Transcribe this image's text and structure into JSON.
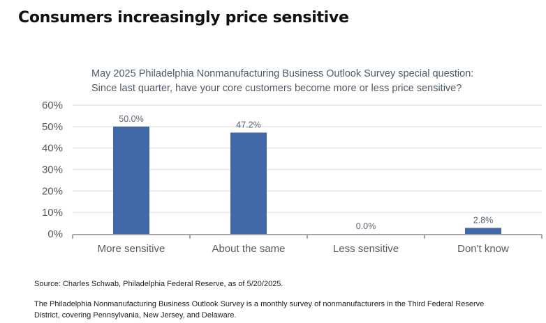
{
  "title": "Consumers increasingly price sensitive",
  "chart_data": {
    "type": "bar",
    "title_lines": [
      "May 2025 Philadelphia Nonmanufacturing Business Outlook Survey special question:",
      "Since last quarter, have your core customers become more or less price sensitive?"
    ],
    "categories": [
      "More sensitive",
      "About the same",
      "Less sensitive",
      "Don't know"
    ],
    "values": [
      50.0,
      47.2,
      0.0,
      2.8
    ],
    "data_labels": [
      "50.0%",
      "47.2%",
      "0.0%",
      "2.8%"
    ],
    "yticks": [
      "0%",
      "10%",
      "20%",
      "30%",
      "40%",
      "50%",
      "60%"
    ],
    "ylim": [
      0,
      60
    ],
    "grid": true,
    "bar_color": "#4169a8",
    "xlabel": "",
    "ylabel": ""
  },
  "source": "Source: Charles Schwab, Philadelphia Federal Reserve, as of 5/20/2025.",
  "footnote_lines": [
    "The Philadelphia Nonmanufacturing Business Outlook Survey is a monthly survey of nonmanufacturers in the Third Federal Reserve",
    "District, covering Pennsylvania, New Jersey, and Delaware."
  ]
}
